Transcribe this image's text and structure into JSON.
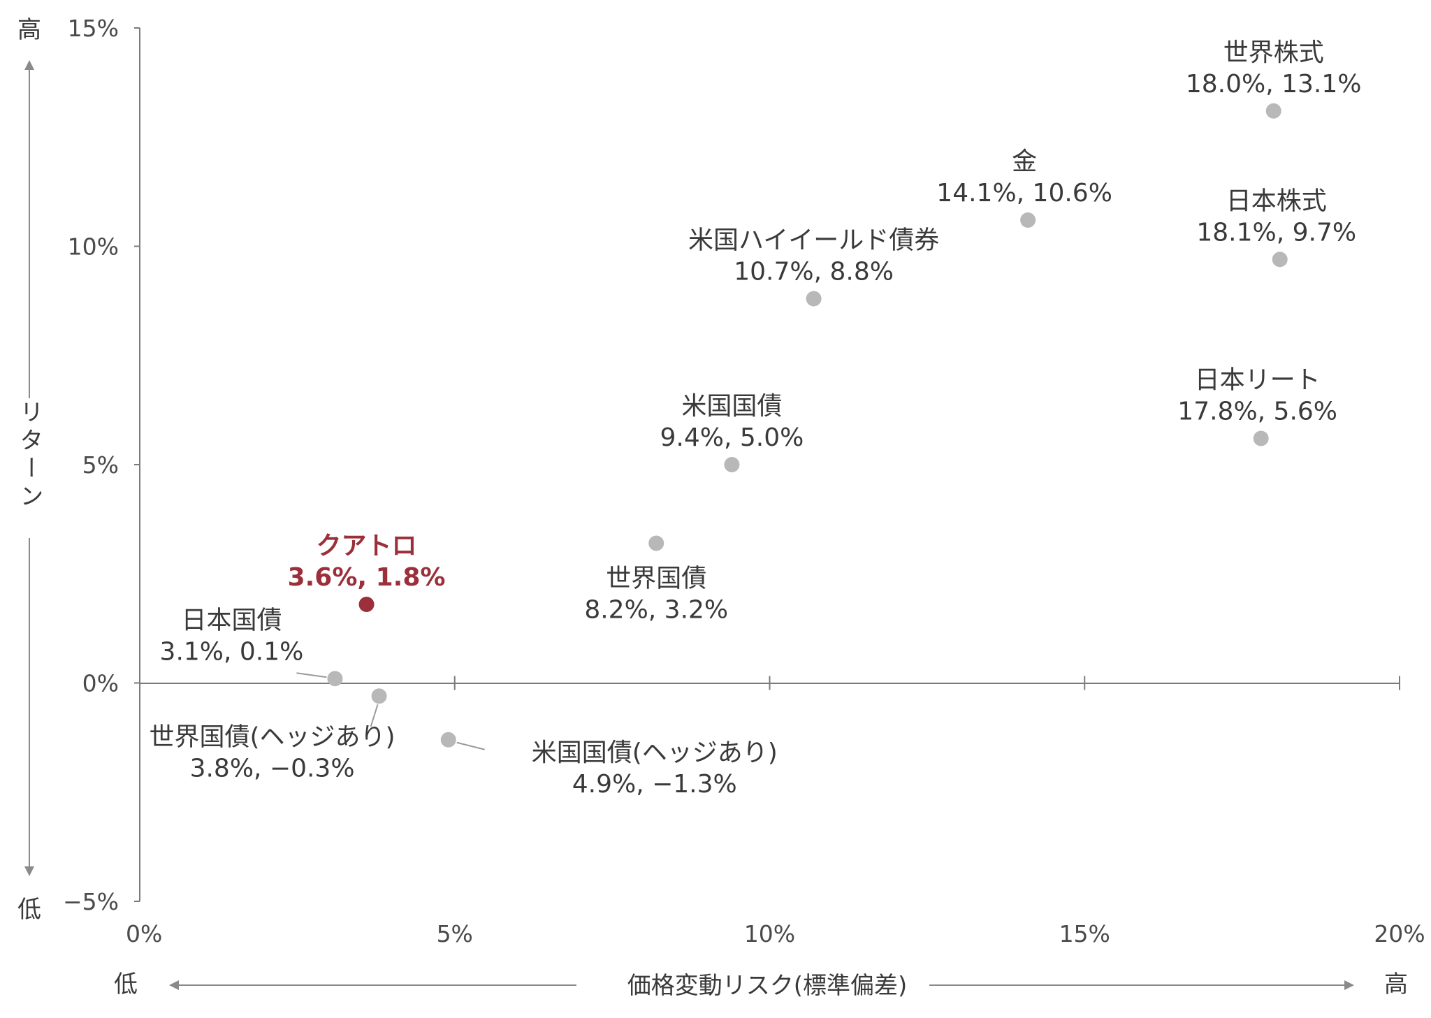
{
  "chart_data": {
    "type": "scatter",
    "xlim": [
      0,
      20
    ],
    "ylim": [
      -5,
      15
    ],
    "x_ticks": [
      "0%",
      "5%",
      "10%",
      "15%",
      "20%"
    ],
    "y_ticks": [
      "−5%",
      "0%",
      "5%",
      "10%",
      "15%"
    ],
    "xlabel": "価格変動リスク(標準偏差)",
    "ylabel": "リターン",
    "x_low": "低",
    "x_high": "高",
    "y_low": "低",
    "y_high": "高",
    "grid": false,
    "colors": {
      "point": "#b8b8b8",
      "highlight": "#9b2f3a",
      "axis": "#7a7a7a"
    },
    "points": [
      {
        "name": "世界株式",
        "value_label": "18.0%, 13.1%",
        "x": 18.0,
        "y": 13.1
      },
      {
        "name": "金",
        "value_label": "14.1%, 10.6%",
        "x": 14.1,
        "y": 10.6
      },
      {
        "name": "日本株式",
        "value_label": "18.1%, 9.7%",
        "x": 18.1,
        "y": 9.7
      },
      {
        "name": "米国ハイイールド債券",
        "value_label": "10.7%, 8.8%",
        "x": 10.7,
        "y": 8.8
      },
      {
        "name": "日本リート",
        "value_label": "17.8%, 5.6%",
        "x": 17.8,
        "y": 5.6
      },
      {
        "name": "米国国債",
        "value_label": "9.4%, 5.0%",
        "x": 9.4,
        "y": 5.0
      },
      {
        "name": "世界国債",
        "value_label": "8.2%, 3.2%",
        "x": 8.2,
        "y": 3.2
      },
      {
        "name": "クアトロ",
        "value_label": "3.6%, 1.8%",
        "x": 3.6,
        "y": 1.8,
        "highlight": true
      },
      {
        "name": "日本国債",
        "value_label": "3.1%, 0.1%",
        "x": 3.1,
        "y": 0.1
      },
      {
        "name": "世界国債(ヘッジあり)",
        "value_label": "3.8%, −0.3%",
        "x": 3.8,
        "y": -0.3
      },
      {
        "name": "米国国債(ヘッジあり)",
        "value_label": "4.9%, −1.3%",
        "x": 4.9,
        "y": -1.3
      }
    ]
  }
}
